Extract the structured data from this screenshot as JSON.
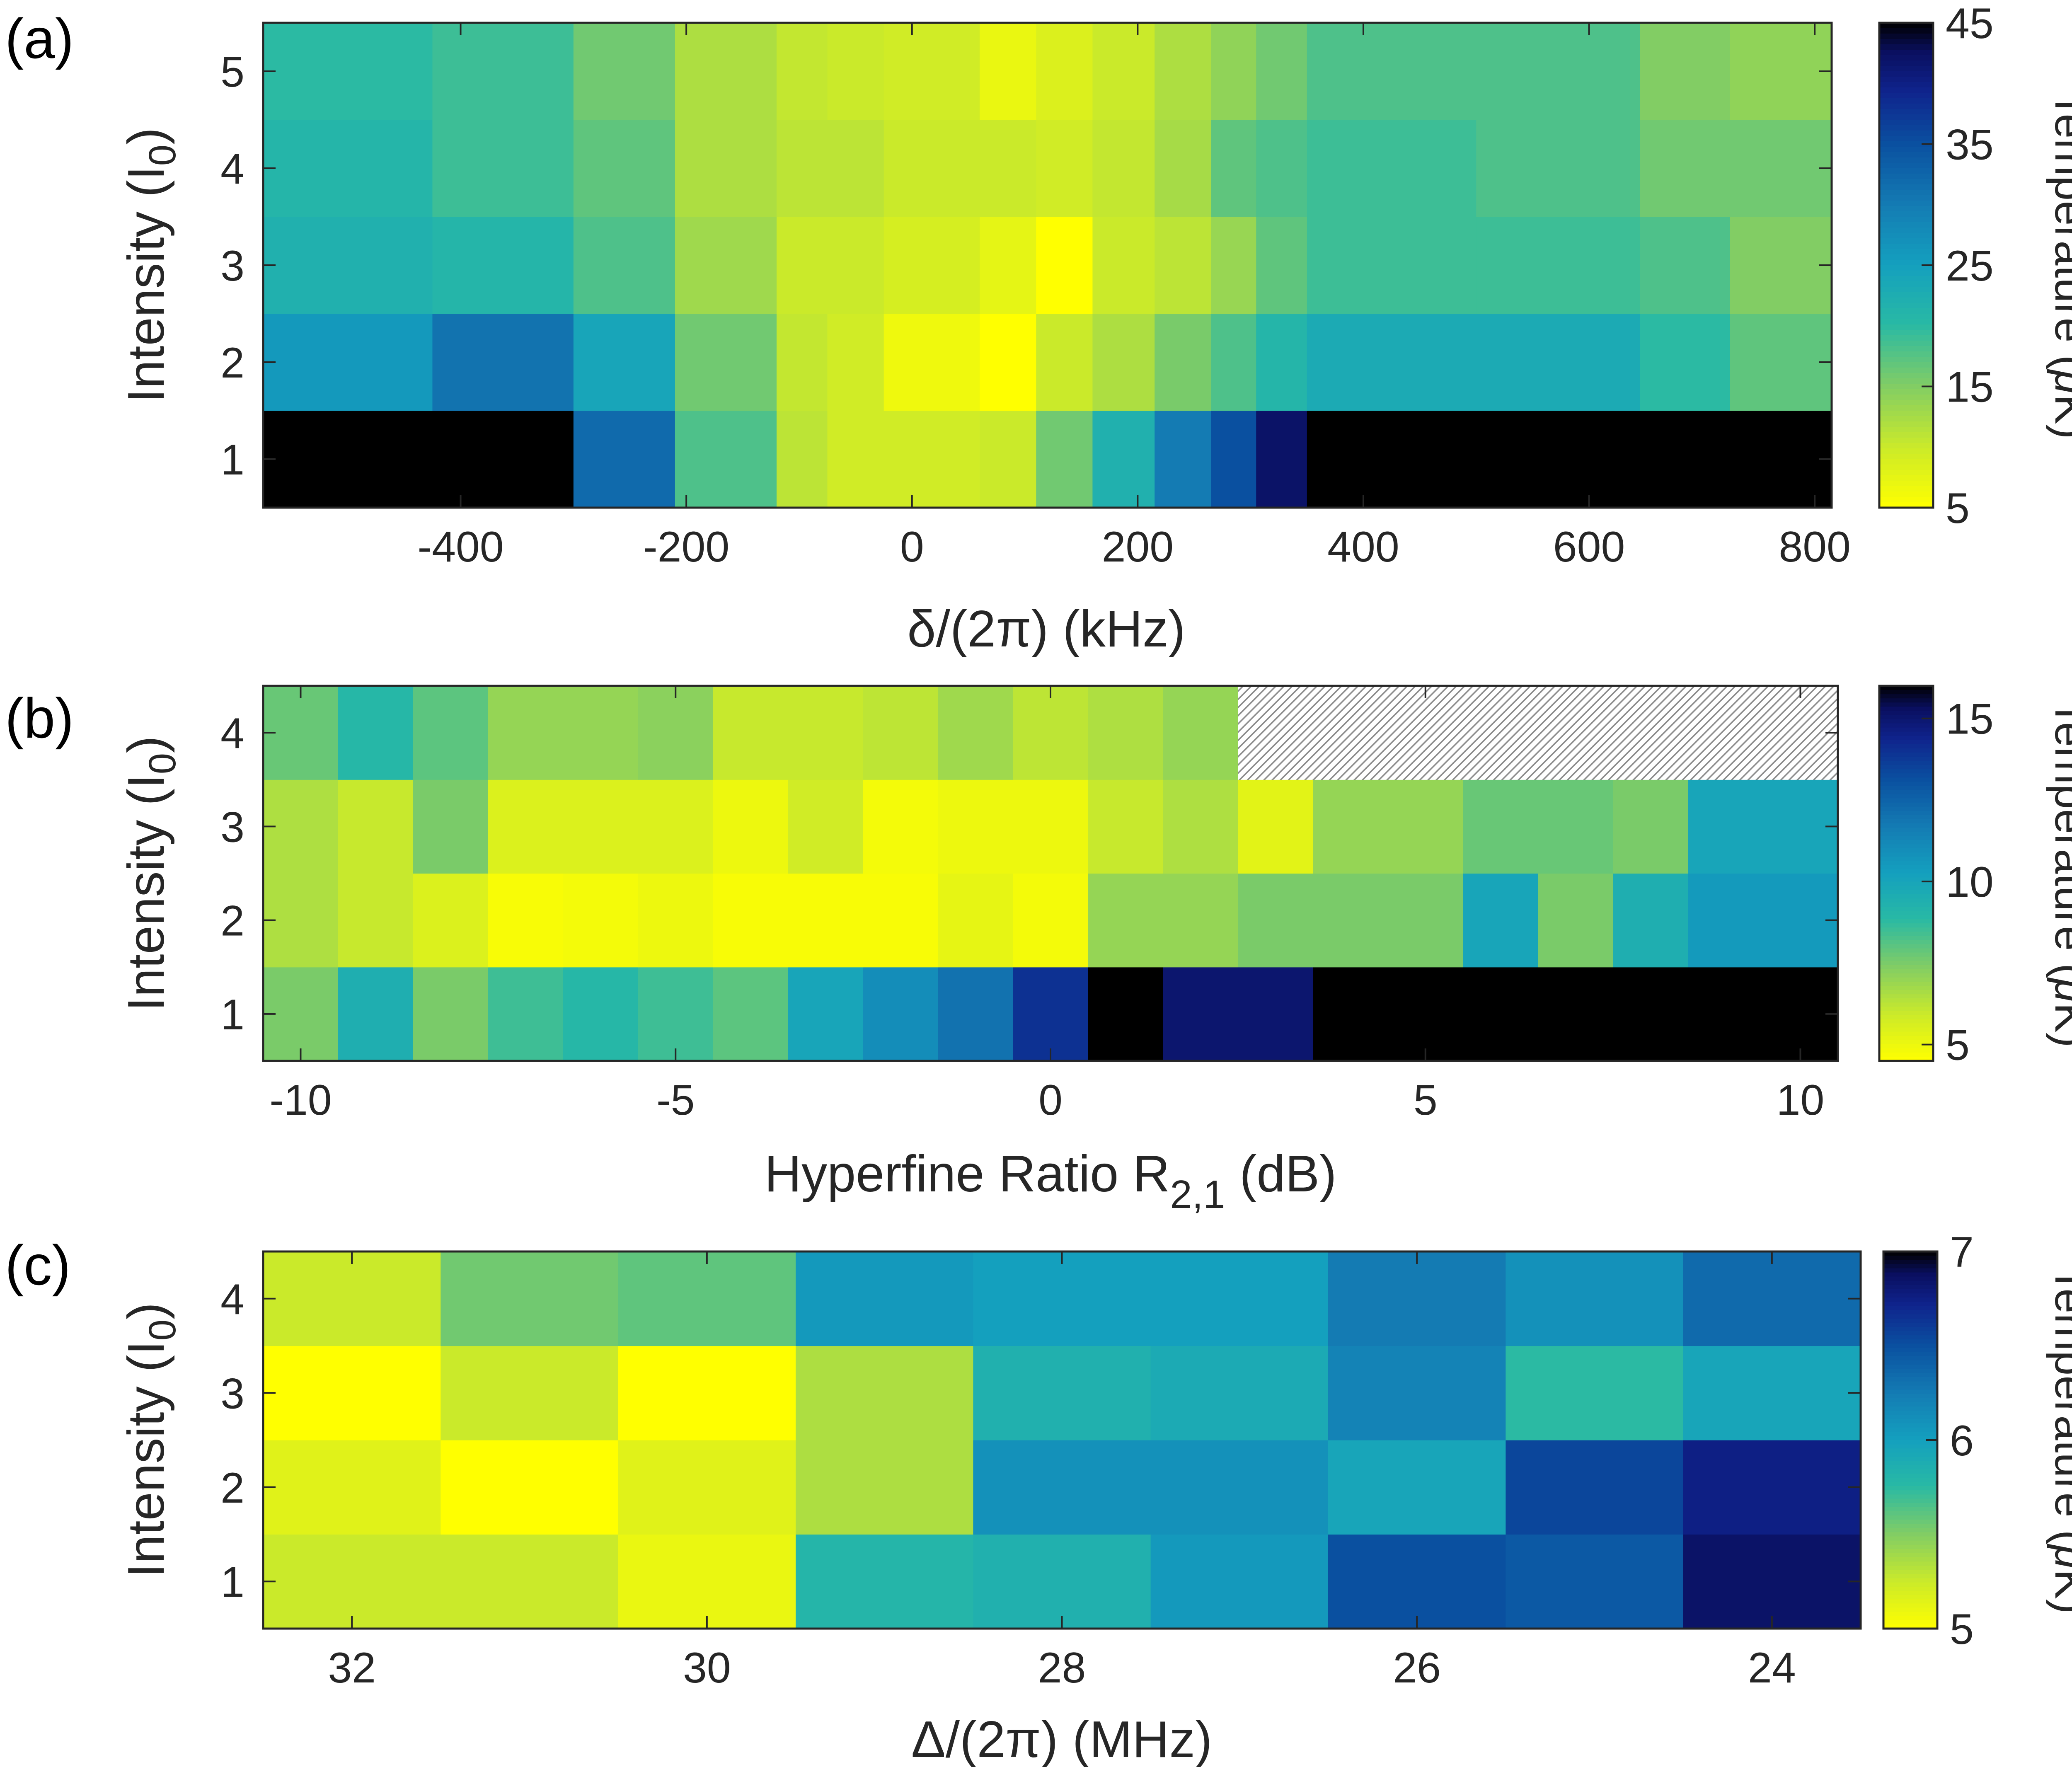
{
  "colors": {
    "colormap": "parula-reversed",
    "axis": "#262626",
    "missing": "hatched gray"
  },
  "chart_data": [
    {
      "type": "heatmap",
      "panel_label": "(a)",
      "xlabel": "δ/(2π) (kHz)",
      "ylabel": "Intensity (I0)",
      "ylabel_main": "Intensity (I",
      "ylabel_sub": "0",
      "ylabel_tail": ")",
      "x": [
        -550,
        -500,
        -450,
        -400,
        -350,
        -300,
        -250,
        -200,
        -150,
        -100,
        -50,
        0,
        50,
        100,
        150,
        200,
        250,
        300,
        350,
        400,
        450,
        500,
        550,
        600,
        650,
        700,
        750,
        800
      ],
      "x_edges": [
        -575,
        -425,
        -300,
        -210,
        -120,
        -75,
        -25,
        60,
        110,
        160,
        215,
        265,
        305,
        350,
        425,
        500,
        570,
        645,
        725,
        815
      ],
      "y": [
        1,
        2,
        3,
        4,
        5
      ],
      "xlim": [
        -575,
        815
      ],
      "ylim": [
        0.5,
        5.5
      ],
      "xticks": [
        -400,
        -200,
        0,
        200,
        400,
        600,
        800
      ],
      "xtick_labels": [
        "-400",
        "-200",
        "0",
        "200",
        "400",
        "600",
        "800"
      ],
      "yticks": [
        1,
        2,
        3,
        4,
        5
      ],
      "ytick_labels": [
        "1",
        "2",
        "3",
        "4",
        "5"
      ],
      "colorbar": {
        "min": 5,
        "max": 45,
        "ticks": [
          5,
          15,
          25,
          35,
          45
        ],
        "tick_labels": [
          "5",
          "15",
          "25",
          "35",
          "45"
        ],
        "label": "Temperature (μK)",
        "label_main": "Temperature (",
        "label_mu": "μ",
        "label_tail": "K)"
      },
      "z": [
        [
          50,
          50,
          32,
          18,
          11,
          9.5,
          9.5,
          10,
          16,
          22,
          30,
          35,
          42,
          50,
          50,
          50,
          50,
          50,
          50
        ],
        [
          26,
          31,
          24,
          16,
          10.5,
          9.5,
          6.5,
          5,
          10,
          12,
          15.5,
          18,
          21,
          23,
          23,
          23,
          23,
          20,
          17
        ],
        [
          22,
          21,
          18,
          13,
          10,
          10,
          9,
          7.5,
          5,
          10,
          11,
          13.5,
          17,
          19,
          19,
          19,
          19,
          18,
          15
        ],
        [
          21,
          19,
          17,
          12,
          11,
          11,
          10,
          10,
          9.5,
          10.5,
          12.5,
          17,
          18,
          19,
          19,
          18,
          18,
          16,
          16
        ],
        [
          20,
          19,
          16,
          12,
          10.5,
          10,
          9.5,
          7,
          8.5,
          10,
          12,
          14,
          16,
          18,
          18,
          18,
          18,
          15,
          14
        ]
      ]
    },
    {
      "type": "heatmap",
      "panel_label": "(b)",
      "xlabel": "Hyperfine Ratio R2,1 (dB)",
      "xlabel_main": "Hyperfine Ratio R",
      "xlabel_sub": "2,1",
      "xlabel_tail": " (dB)",
      "ylabel": "Intensity (I0)",
      "ylabel_main": "Intensity (I",
      "ylabel_sub": "0",
      "ylabel_tail": ")",
      "x": [
        -10,
        -9,
        -8,
        -7,
        -6,
        -5,
        -4,
        -3,
        -2,
        -1,
        0,
        1,
        2,
        3,
        4,
        5,
        6,
        7,
        8,
        9,
        10
      ],
      "ylim": [
        0.5,
        4.5
      ],
      "xlim": [
        -10.5,
        10.5
      ],
      "xticks": [
        -10,
        -5,
        0,
        5,
        10
      ],
      "xtick_labels": [
        "-10",
        "-5",
        "0",
        "5",
        "10"
      ],
      "yticks": [
        1,
        2,
        3,
        4
      ],
      "ytick_labels": [
        "1",
        "2",
        "3",
        "4"
      ],
      "colorbar": {
        "min": 4.5,
        "max": 16,
        "ticks": [
          5,
          10,
          15
        ],
        "tick_labels": [
          "5",
          "10",
          "15"
        ],
        "label": "Temperature (μK)",
        "label_main": "Temperature (",
        "label_mu": "μ",
        "label_tail": "K)"
      },
      "z": [
        [
          7.5,
          9.5,
          7.5,
          8.5,
          9,
          8.5,
          8,
          10,
          11,
          12,
          14,
          16,
          15,
          15,
          18,
          18,
          18,
          18,
          18,
          18,
          18
        ],
        [
          6.5,
          6,
          5.5,
          4.7,
          4.8,
          5,
          4.7,
          4.7,
          4.7,
          5.2,
          4.8,
          7,
          7,
          7.5,
          7.5,
          7.5,
          10,
          7.5,
          9.5,
          10.5,
          10.5
        ],
        [
          6.5,
          6,
          7.5,
          5.5,
          5.5,
          5.5,
          5,
          5.8,
          4.8,
          5,
          5,
          6,
          6.5,
          5.3,
          7,
          7,
          7.8,
          7.8,
          7.5,
          10,
          10
        ],
        [
          7.8,
          9,
          8,
          7,
          7,
          7.2,
          6,
          6,
          6.2,
          6.8,
          6.2,
          6.5,
          7,
          null,
          null,
          null,
          null,
          null,
          null,
          null,
          null
        ]
      ]
    },
    {
      "type": "heatmap",
      "panel_label": "(c)",
      "xlabel": "Δ/(2π) (MHz)",
      "ylabel": "Intensity (I0)",
      "ylabel_main": "Intensity (I",
      "ylabel_sub": "0",
      "ylabel_tail": ")",
      "x": [
        32,
        31,
        30,
        29,
        28,
        27,
        26,
        25,
        24
      ],
      "xlim": [
        32.5,
        23.5
      ],
      "ylim": [
        0.5,
        4.5
      ],
      "xticks": [
        32,
        30,
        28,
        26,
        24
      ],
      "xtick_labels": [
        "32",
        "30",
        "28",
        "26",
        "24"
      ],
      "yticks": [
        1,
        2,
        3,
        4
      ],
      "ytick_labels": [
        "1",
        "2",
        "3",
        "4"
      ],
      "colorbar": {
        "min": 5,
        "max": 7,
        "ticks": [
          5,
          6,
          7
        ],
        "tick_labels": [
          "5",
          "6",
          "7"
        ],
        "label": "Temperature (μK)",
        "label_main": "Temperature (",
        "label_mu": "μ",
        "label_tail": "K)"
      },
      "z": [
        [
          5.25,
          5.25,
          5.1,
          5.8,
          5.85,
          6.05,
          6.5,
          6.45,
          6.85
        ],
        [
          5.15,
          5.0,
          5.15,
          5.35,
          6.1,
          6.1,
          5.95,
          6.55,
          6.75
        ],
        [
          5.0,
          5.25,
          5.0,
          5.35,
          5.85,
          5.9,
          6.2,
          5.75,
          5.95
        ],
        [
          5.25,
          5.55,
          5.6,
          6.05,
          6.0,
          6.0,
          6.25,
          6.1,
          6.35
        ]
      ]
    }
  ]
}
